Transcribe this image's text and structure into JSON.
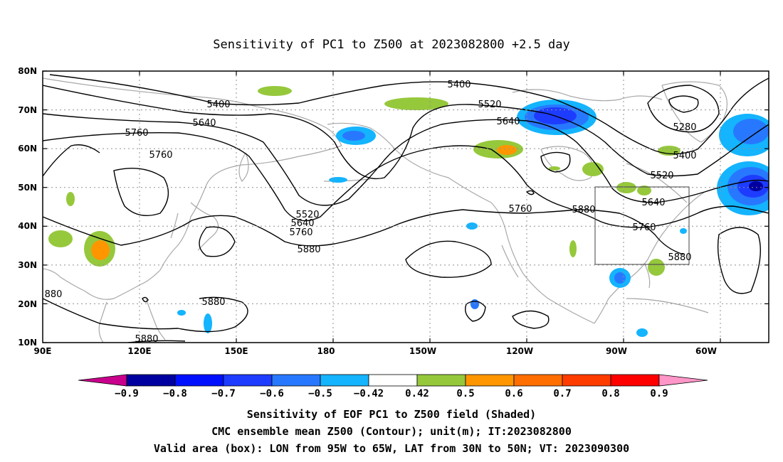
{
  "title": "Sensitivity of PC1 to Z500 at 2023082800 +2.5 day",
  "lat_ticks": [
    "80N",
    "70N",
    "60N",
    "50N",
    "40N",
    "30N",
    "20N",
    "10N"
  ],
  "lon_ticks": [
    "90E",
    "120E",
    "150E",
    "180",
    "150W",
    "120W",
    "90W",
    "60W"
  ],
  "contour_labels": [
    {
      "text": "5400"
    },
    {
      "text": "5520"
    },
    {
      "text": "5640"
    },
    {
      "text": "5400"
    },
    {
      "text": "5640"
    },
    {
      "text": "5760"
    },
    {
      "text": "5760"
    },
    {
      "text": "5520"
    },
    {
      "text": "5640"
    },
    {
      "text": "5760"
    },
    {
      "text": "5880"
    },
    {
      "text": "5760"
    },
    {
      "text": "5880"
    },
    {
      "text": "5280"
    },
    {
      "text": "5400"
    },
    {
      "text": "5520"
    },
    {
      "text": "5640"
    },
    {
      "text": "5760"
    },
    {
      "text": "5880"
    },
    {
      "text": "5880"
    },
    {
      "text": "5880"
    },
    {
      "text": "880"
    }
  ],
  "colorbar": {
    "labels": [
      "-0.9",
      "-0.8",
      "-0.7",
      "-0.6",
      "-0.5",
      "-0.42",
      "0.42",
      "0.5",
      "0.6",
      "0.7",
      "0.8",
      "0.9"
    ],
    "colors": [
      "#0000a0",
      "#0010ff",
      "#1e3cff",
      "#2878ff",
      "#14b4ff",
      "#ffffff",
      "#96c83c",
      "#ff9600",
      "#ff6e00",
      "#ff3c00",
      "#ff0000"
    ],
    "low_color": "#c8008c",
    "high_color": "#ff96c8"
  },
  "captions": [
    "Sensitivity of EOF PC1 to Z500 field (Shaded)",
    "CMC ensemble mean Z500 (Contour); unit(m); IT:2023082800",
    "Valid area (box): LON from 95W to 65W, LAT from 30N to 50N; VT: 2023090300"
  ]
}
